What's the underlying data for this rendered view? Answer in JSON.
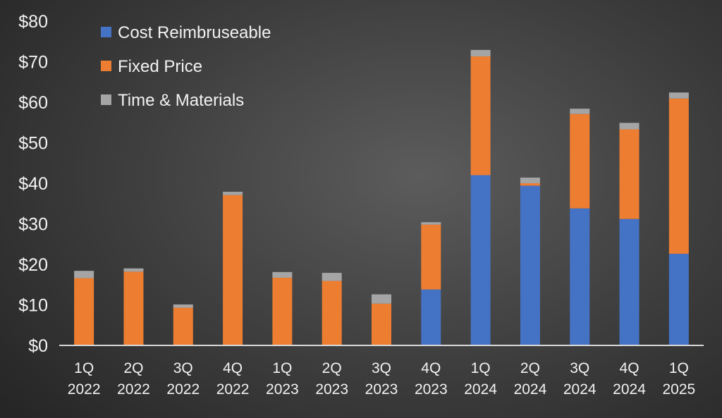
{
  "chart_data": {
    "type": "bar",
    "stacked": true,
    "title": "",
    "xlabel": "",
    "ylabel": "",
    "ylim": [
      0,
      80
    ],
    "y_ticks": [
      "$0",
      "$10",
      "$20",
      "$30",
      "$40",
      "$50",
      "$60",
      "$70",
      "$80"
    ],
    "grid": false,
    "legend_position": "top-left",
    "categories": [
      [
        "1Q",
        "2022"
      ],
      [
        "2Q",
        "2022"
      ],
      [
        "3Q",
        "2022"
      ],
      [
        "4Q",
        "2022"
      ],
      [
        "1Q",
        "2023"
      ],
      [
        "2Q",
        "2023"
      ],
      [
        "3Q",
        "2023"
      ],
      [
        "4Q",
        "2023"
      ],
      [
        "1Q",
        "2024"
      ],
      [
        "2Q",
        "2024"
      ],
      [
        "3Q",
        "2024"
      ],
      [
        "4Q",
        "2024"
      ],
      [
        "1Q",
        "2025"
      ]
    ],
    "series": [
      {
        "name": "Cost Reimbruseable",
        "color": "#4472c4",
        "values": [
          0,
          0,
          0,
          0,
          0,
          0,
          0,
          13.8,
          42.0,
          39.4,
          33.8,
          31.2,
          22.6
        ]
      },
      {
        "name": "Fixed Price",
        "color": "#ed7d31",
        "values": [
          16.6,
          18.2,
          9.3,
          37.1,
          16.7,
          15.9,
          10.3,
          16.0,
          29.3,
          0.6,
          23.3,
          22.1,
          38.3
        ]
      },
      {
        "name": "Time & Materials",
        "color": "#a5a5a5",
        "values": [
          1.8,
          0.8,
          0.8,
          0.8,
          1.4,
          2.0,
          2.3,
          0.6,
          1.6,
          1.4,
          1.3,
          1.6,
          1.5
        ]
      }
    ]
  }
}
